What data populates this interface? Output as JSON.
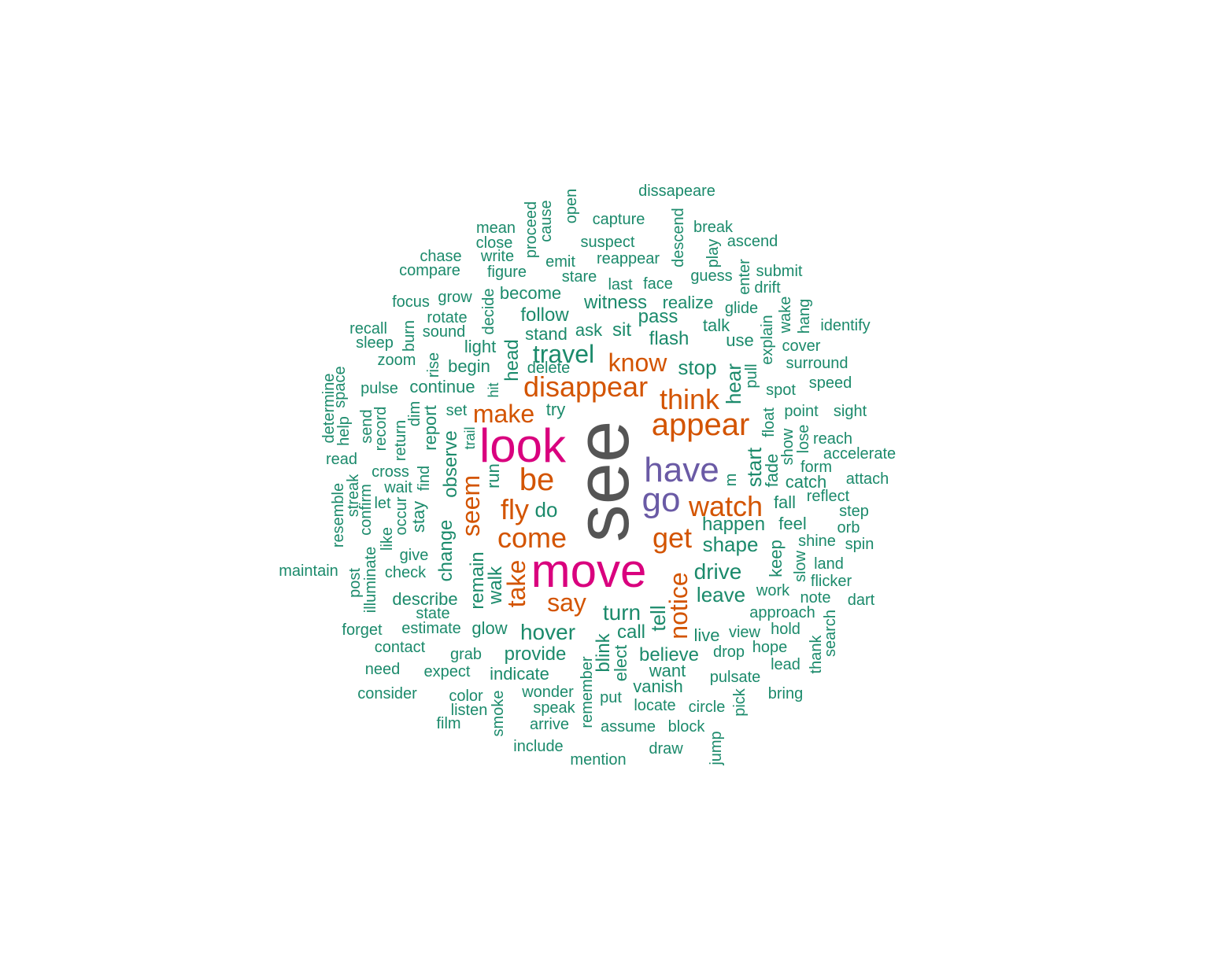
{
  "colors": {
    "tier1": "#555555",
    "tier2": "#d9007e",
    "tier3": "#6a5aa5",
    "tier4": "#d35400",
    "tier5": "#1b8a6b"
  },
  "words": [
    "see",
    "move",
    "look",
    "have",
    "go",
    "appear",
    "disappear",
    "think",
    "make",
    "be",
    "fly",
    "come",
    "watch",
    "get",
    "know",
    "seem",
    "notice",
    "take",
    "say",
    "travel",
    "stop",
    "hear",
    "start",
    "drive",
    "leave",
    "shape",
    "happen",
    "hover",
    "turn",
    "tell",
    "dissapeare",
    "capture",
    "open",
    "cause",
    "proceed",
    "mean",
    "close",
    "write",
    "chase",
    "compare",
    "suspect",
    "break",
    "descend",
    "play",
    "ascend",
    "emit",
    "reappear",
    "figure",
    "stare",
    "last",
    "face",
    "guess",
    "enter",
    "submit",
    "drift",
    "focus",
    "grow",
    "decide",
    "become",
    "witness",
    "realize",
    "glide",
    "wake",
    "hang",
    "identify",
    "recall",
    "rotate",
    "burn",
    "sleep",
    "sound",
    "follow",
    "pass",
    "talk",
    "explain",
    "use",
    "cover",
    "stand",
    "ask",
    "sit",
    "flash",
    "zoom",
    "rise",
    "light",
    "begin",
    "head",
    "delete",
    "surround",
    "pulse",
    "continue",
    "hit",
    "pull",
    "spot",
    "speed",
    "determine",
    "space",
    "try",
    "float",
    "point",
    "sight",
    "help",
    "send",
    "record",
    "dim",
    "return",
    "report",
    "set",
    "trail",
    "show",
    "lose",
    "reach",
    "accelerate",
    "read",
    "observe",
    "run",
    "m",
    "fade",
    "form",
    "catch",
    "attach",
    "cross",
    "wait",
    "find",
    "reflect",
    "let",
    "do",
    "fall",
    "feel",
    "resemble",
    "streak",
    "confirm",
    "occur",
    "stay",
    "change",
    "step",
    "orb",
    "like",
    "shine",
    "spin",
    "give",
    "keep",
    "land",
    "maintain",
    "check",
    "post",
    "illuminate",
    "remain",
    "walk",
    "slow",
    "flicker",
    "describe",
    "work",
    "note",
    "dart",
    "state",
    "approach",
    "forget",
    "estimate",
    "glow",
    "call",
    "view",
    "hold",
    "search",
    "thank",
    "contact",
    "grab",
    "provide",
    "blink",
    "elect",
    "believe",
    "live",
    "drop",
    "hope",
    "need",
    "remember",
    "expect",
    "indicate",
    "want",
    "lead",
    "pulsate",
    "vanish",
    "consider",
    "color",
    "smoke",
    "wonder",
    "put",
    "bring",
    "pick",
    "listen",
    "speak",
    "locate",
    "circle",
    "film",
    "arrive",
    "assume",
    "block",
    "include",
    "draw",
    "jump",
    "mention"
  ]
}
